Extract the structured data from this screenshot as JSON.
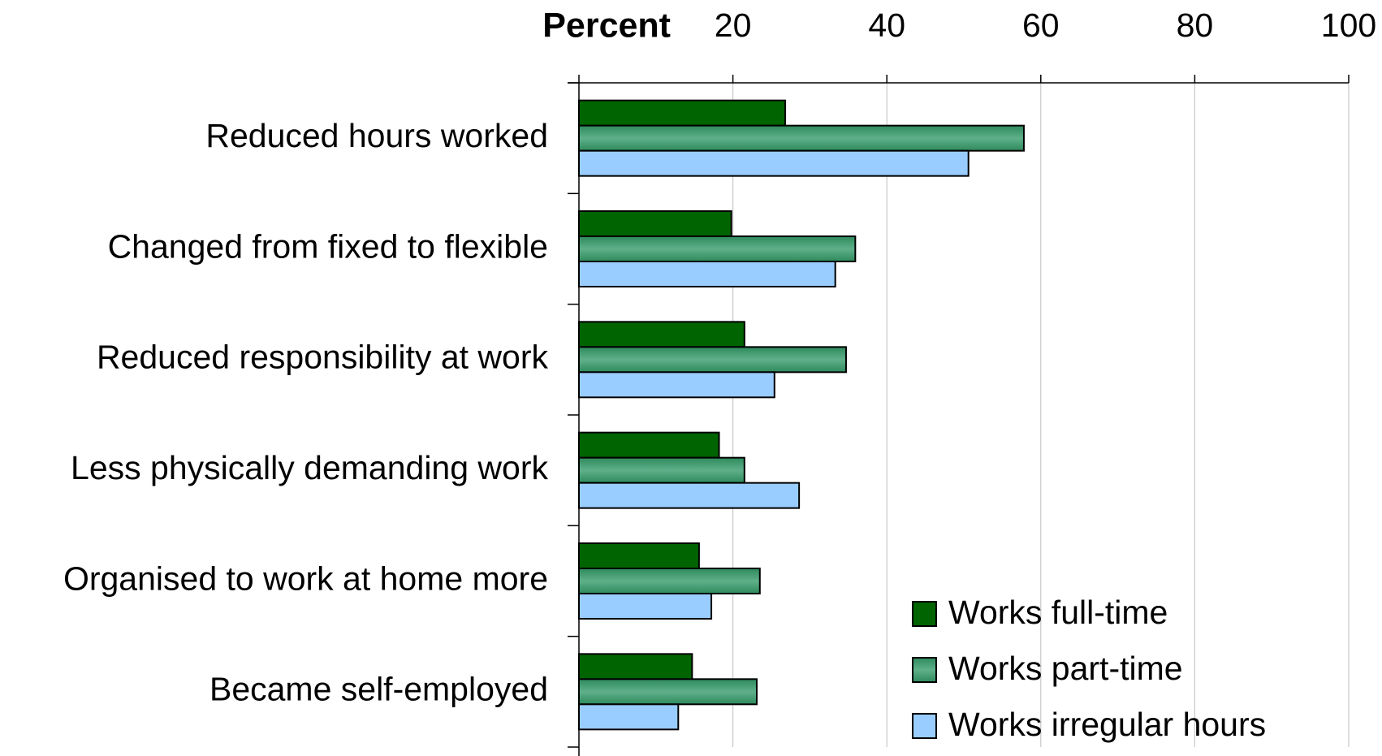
{
  "chart_data": {
    "type": "hbar",
    "x_label": "Percent",
    "categories": [
      "Reduced hours worked",
      "Changed from fixed to flexible",
      "Reduced responsibility at work",
      "Less physically demanding work",
      "Organised to work at home more",
      "Became self-employed"
    ],
    "series": [
      {
        "name": "Works full-time",
        "color": "#006400",
        "values": [
          26.8,
          19.8,
          21.5,
          18.2,
          15.6,
          14.7
        ]
      },
      {
        "name": "Works part-time",
        "color": "#4a9e72",
        "values": [
          57.8,
          35.9,
          34.7,
          21.5,
          23.5,
          23.1
        ]
      },
      {
        "name": "Works irregular hours",
        "color": "#99ccff",
        "values": [
          50.6,
          33.3,
          25.4,
          28.6,
          17.2,
          12.9
        ]
      }
    ],
    "xlim": [
      0,
      100
    ],
    "xticks": [
      20,
      40,
      60,
      80,
      100
    ],
    "grid": true,
    "legend": "bottom-right"
  }
}
